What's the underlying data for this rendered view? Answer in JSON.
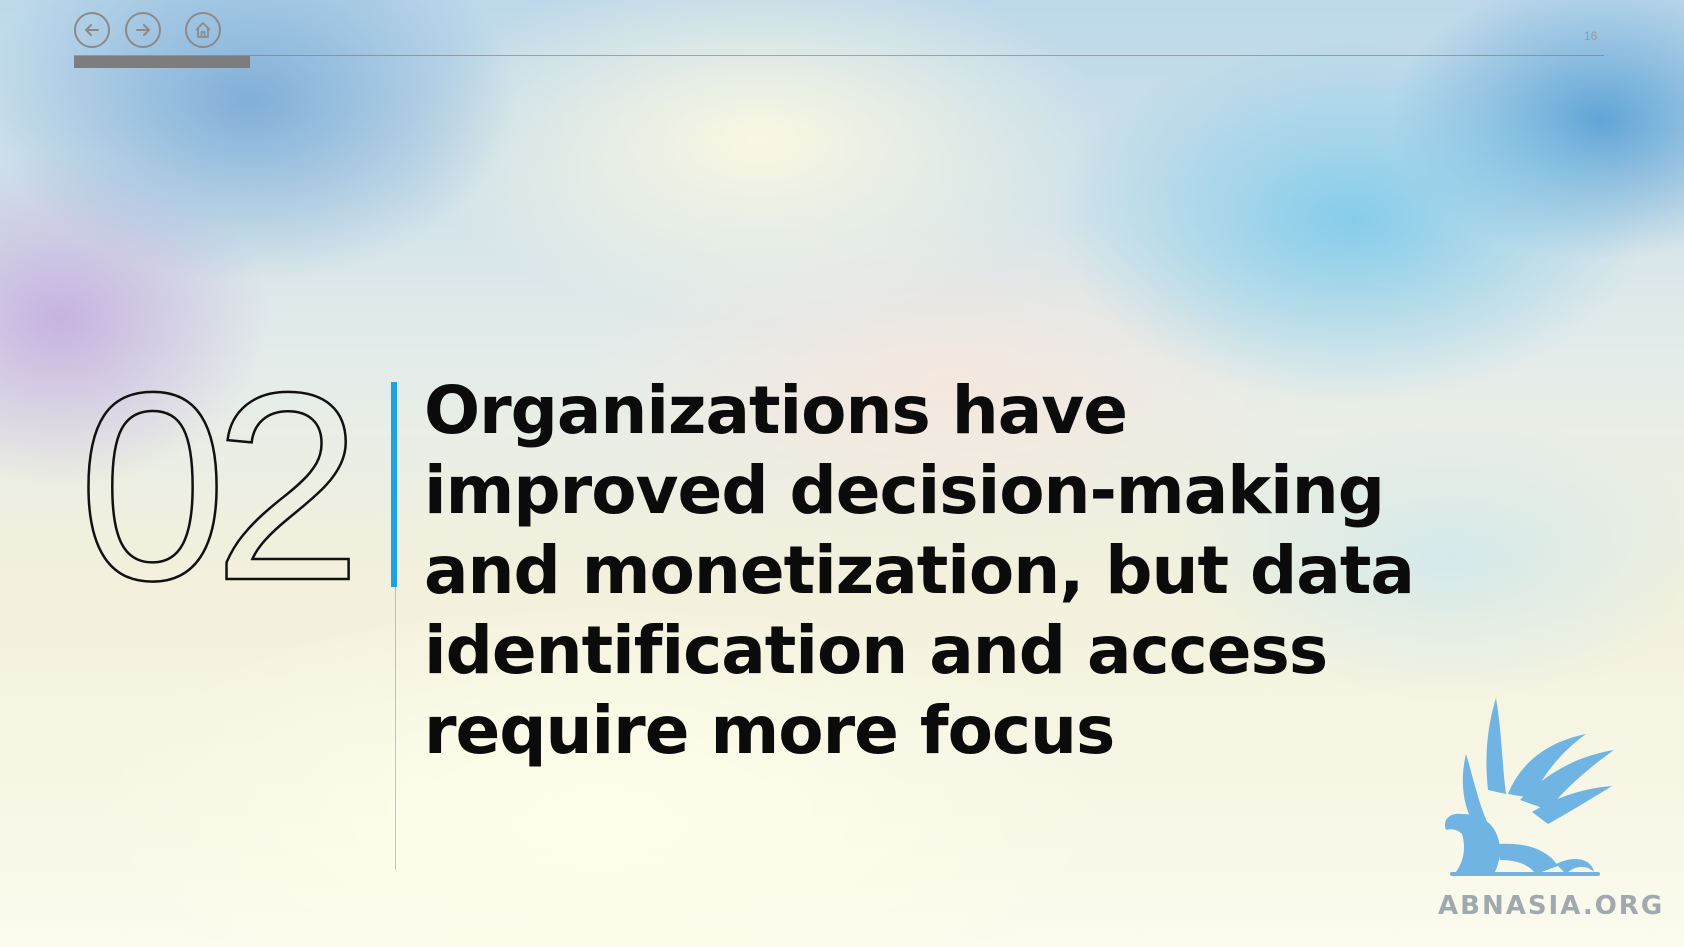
{
  "slide": {
    "page_number": "16",
    "progress_fraction": 0.115,
    "section_number": "02",
    "headline": "Organizations have improved decision-making and monetization, but data identification and access require more focus"
  },
  "logo": {
    "text": "ABNASIA.ORG"
  },
  "icons": {
    "back": "arrow-left-icon",
    "forward": "arrow-right-icon",
    "home": "home-icon"
  },
  "colors": {
    "accent": "#1fa3e0",
    "logo_blue": "#6fb4e3"
  }
}
